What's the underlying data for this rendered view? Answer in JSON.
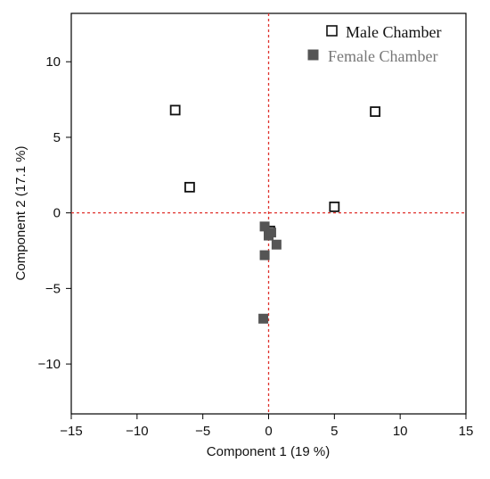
{
  "chart_data": {
    "type": "scatter",
    "xlabel": "Component 1  (19 %)",
    "ylabel": "Component 2  (17.1 %)",
    "xlim": [
      -15,
      15
    ],
    "ylim": [
      -13.3,
      13.2
    ],
    "xticks": [
      -15,
      -10,
      -5,
      0,
      5,
      10,
      15
    ],
    "yticks": [
      -10,
      -5,
      0,
      5,
      10
    ],
    "xtick_labels": [
      "−15",
      "−10",
      "−5",
      "0",
      "5",
      "10",
      "15"
    ],
    "ytick_labels": [
      "−10",
      "−5",
      "0",
      "5",
      "10"
    ],
    "grid": false,
    "reference_lines": {
      "x": 0,
      "y": 0,
      "color": "#e0322d",
      "style": "dashed"
    },
    "legend_position": "top-right",
    "series": [
      {
        "name": "Male Chamber",
        "marker": "open-square",
        "color": "#111111",
        "points": [
          {
            "x": -7.1,
            "y": 6.8
          },
          {
            "x": -6.0,
            "y": 1.7
          },
          {
            "x": 8.1,
            "y": 6.7
          },
          {
            "x": 5.0,
            "y": 0.4
          },
          {
            "x": 0.1,
            "y": -1.2
          }
        ]
      },
      {
        "name": "Female Chamber",
        "marker": "filled-square",
        "color": "#555555",
        "points": [
          {
            "x": -0.3,
            "y": -0.9
          },
          {
            "x": 0.0,
            "y": -1.5
          },
          {
            "x": 0.2,
            "y": -1.3
          },
          {
            "x": 0.6,
            "y": -2.1
          },
          {
            "x": -0.3,
            "y": -2.8
          },
          {
            "x": -0.4,
            "y": -7.0
          }
        ]
      }
    ]
  }
}
